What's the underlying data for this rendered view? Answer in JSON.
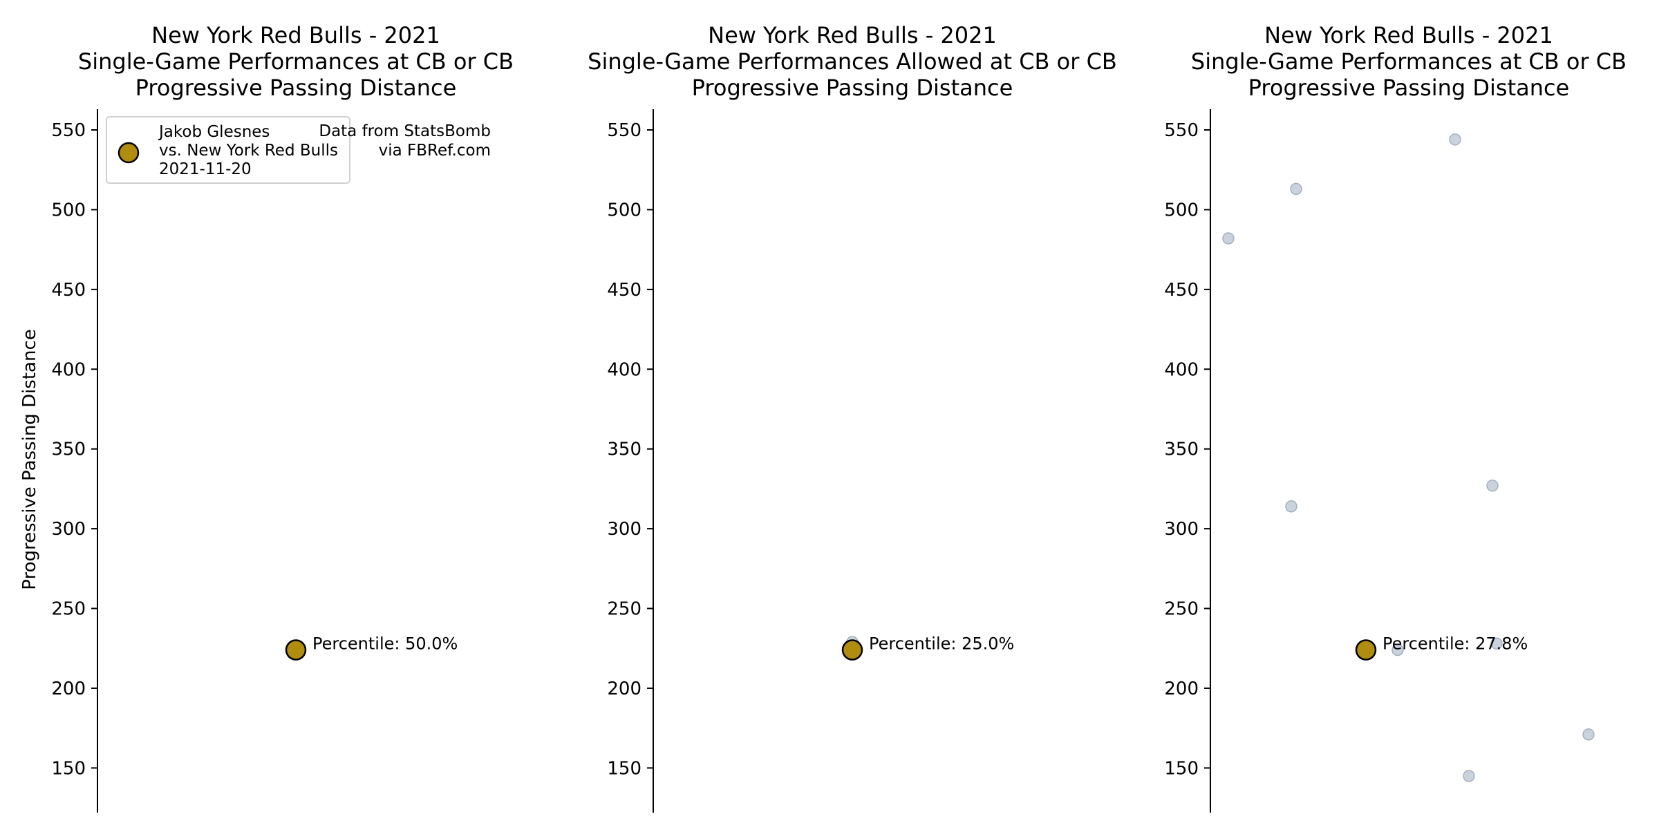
{
  "chart_data": [
    {
      "type": "scatter",
      "title": "New York Red Bulls - 2021\nSingle-Game Performances at CB or CB\nProgressive Passing Distance",
      "ylabel": "Progressive Passing Distance",
      "ylim": [
        122,
        563
      ],
      "yticks": [
        150,
        200,
        250,
        300,
        350,
        400,
        450,
        500,
        550
      ],
      "grid": false,
      "legend": {
        "position": "top-left",
        "label": "Jakob Glesnes\nvs. New York Red Bulls\n2021-11-20"
      },
      "source_note": "Data from StatsBomb\nvia FBRef.com",
      "highlight": {
        "y": 224,
        "label": "Percentile: 50.0%"
      },
      "background_points": []
    },
    {
      "type": "scatter",
      "title": "New York Red Bulls - 2021\nSingle-Game Performances Allowed at CB or CB\nProgressive Passing Distance",
      "ylabel": "",
      "ylim": [
        122,
        563
      ],
      "yticks": [
        150,
        200,
        250,
        300,
        350,
        400,
        450,
        500,
        550
      ],
      "grid": false,
      "highlight": {
        "y": 224,
        "label": "Percentile: 25.0%"
      },
      "background_points": [
        {
          "y": 229
        }
      ]
    },
    {
      "type": "scatter",
      "title": "New York Red Bulls - 2021\nSingle-Game Performances at CB or CB\nProgressive Passing Distance",
      "ylabel": "",
      "ylim": [
        122,
        563
      ],
      "yticks": [
        150,
        200,
        250,
        300,
        350,
        400,
        450,
        500,
        550
      ],
      "grid": false,
      "highlight": {
        "y": 224,
        "label": "Percentile: 27.8%"
      },
      "background_points": [
        {
          "y": 482
        },
        {
          "y": 513
        },
        {
          "y": 314
        },
        {
          "y": 544
        },
        {
          "y": 224
        },
        {
          "y": 327
        },
        {
          "y": 228
        },
        {
          "y": 145
        },
        {
          "y": 171
        }
      ]
    }
  ],
  "colors": {
    "highlight_fill": "#b08c0f",
    "highlight_stroke": "#000000",
    "background_fill": "#c9d2dd",
    "background_stroke": "#a3b0c0",
    "axis": "#000000"
  }
}
